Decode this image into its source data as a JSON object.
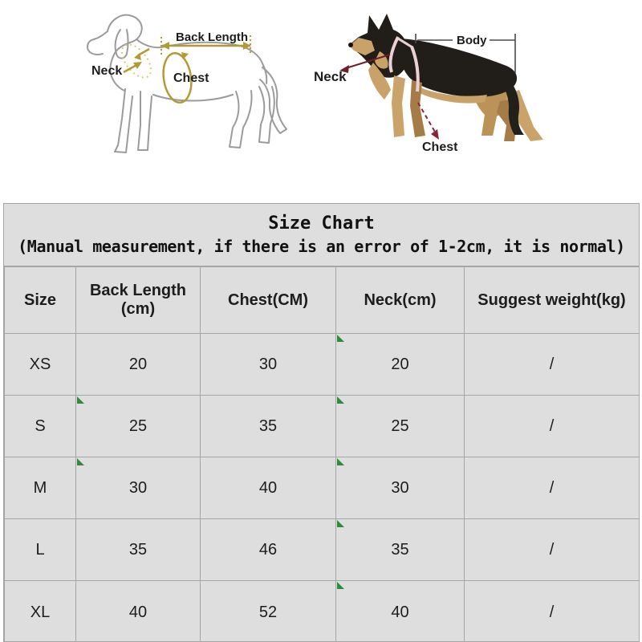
{
  "diagrams": {
    "line_art_dog": {
      "back_length_label": "Back Length",
      "neck_label": "Neck",
      "chest_label": "Chest",
      "outline_color": "#9b9b9b",
      "accent_color": "#b39a35"
    },
    "photo_dog": {
      "body_label": "Body",
      "neck_label": "Neck",
      "chest_label": "Chest",
      "annotation_color": "#4a4a4a",
      "arrow_color": "#7c1f31"
    }
  },
  "size_chart": {
    "title": "Size Chart",
    "subtitle": "(Manual measurement, if there is an error of 1-2cm, it is normal)",
    "header": {
      "size": "Size",
      "back_length_line1": "Back Length",
      "back_length_line2": "(cm)",
      "chest": "Chest(CM)",
      "neck": "Neck(cm)",
      "weight": "Suggest weight(kg)"
    },
    "rows": [
      [
        "XS",
        "20",
        "30",
        "20",
        "/"
      ],
      [
        "S",
        "25",
        "35",
        "25",
        "/"
      ],
      [
        "M",
        "30",
        "40",
        "30",
        "/"
      ],
      [
        "L",
        "35",
        "46",
        "35",
        "/"
      ],
      [
        "XL",
        "40",
        "52",
        "40",
        "/"
      ]
    ],
    "green_markers": [
      [
        0,
        3
      ],
      [
        1,
        1
      ],
      [
        1,
        3
      ],
      [
        2,
        1
      ],
      [
        2,
        3
      ],
      [
        3,
        3
      ],
      [
        4,
        3
      ]
    ],
    "colors": {
      "table_bg": "#dedede",
      "grid_line": "#a2a6a4",
      "text": "#1d1d1d",
      "marker_green": "#2e8b3a"
    }
  }
}
